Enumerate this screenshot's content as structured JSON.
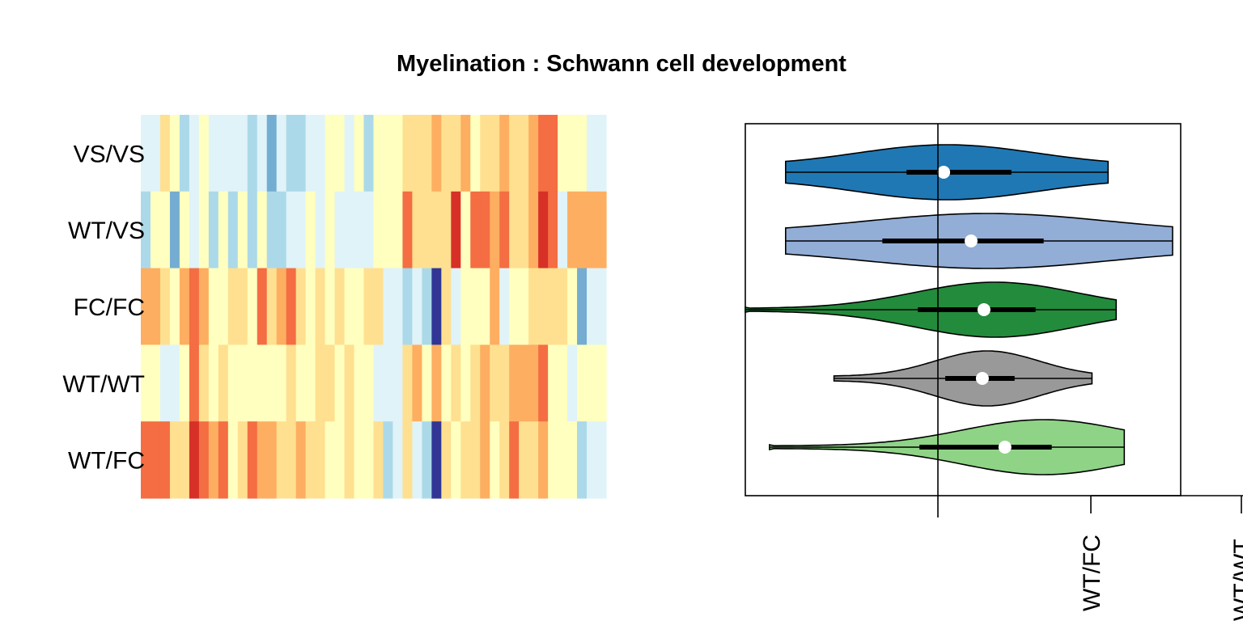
{
  "title": "Myelination : Schwann cell development",
  "chart_data": [
    {
      "type": "heatmap",
      "rows": [
        "VS/VS",
        "WT/VS",
        "FC/FC",
        "WT/WT",
        "WT/FC"
      ],
      "colors": [
        "#313695",
        "#4575b4",
        "#74add1",
        "#abd9e9",
        "#e0f3f8",
        "#ffffbf",
        "#fee090",
        "#fdae61",
        "#f46d43",
        "#d73027",
        "#a50026"
      ],
      "values": [
        [
          4,
          4,
          6,
          5,
          3,
          4,
          5,
          4,
          4,
          4,
          4,
          3,
          4,
          2,
          4,
          3,
          3,
          4,
          4,
          5,
          5,
          4,
          5,
          3,
          5,
          5,
          5,
          6,
          6,
          6,
          7,
          6,
          6,
          7,
          5,
          6,
          6,
          7,
          6,
          6,
          7,
          8,
          8,
          5,
          5,
          5,
          4,
          4
        ],
        [
          3,
          5,
          5,
          2,
          5,
          4,
          5,
          3,
          5,
          3,
          5,
          3,
          5,
          3,
          3,
          4,
          4,
          5,
          4,
          5,
          4,
          4,
          4,
          4,
          5,
          5,
          5,
          8,
          6,
          6,
          6,
          6,
          9,
          5,
          8,
          8,
          7,
          8,
          6,
          6,
          7,
          9,
          8,
          4,
          7,
          7,
          7,
          7
        ],
        [
          7,
          7,
          6,
          5,
          7,
          8,
          7,
          5,
          5,
          6,
          6,
          5,
          8,
          6,
          7,
          8,
          6,
          5,
          6,
          5,
          6,
          5,
          5,
          6,
          6,
          4,
          4,
          3,
          4,
          3,
          0,
          6,
          4,
          5,
          5,
          5,
          7,
          4,
          5,
          5,
          6,
          6,
          6,
          6,
          5,
          2,
          4,
          4
        ],
        [
          5,
          5,
          4,
          4,
          5,
          8,
          6,
          5,
          6,
          5,
          5,
          5,
          5,
          5,
          5,
          6,
          5,
          5,
          6,
          6,
          5,
          6,
          5,
          5,
          4,
          4,
          4,
          6,
          7,
          5,
          7,
          5,
          6,
          5,
          6,
          7,
          6,
          6,
          7,
          7,
          7,
          8,
          5,
          5,
          4,
          5,
          5,
          5
        ],
        [
          8,
          8,
          8,
          6,
          6,
          9,
          8,
          7,
          8,
          5,
          6,
          8,
          7,
          7,
          6,
          6,
          7,
          6,
          6,
          5,
          5,
          6,
          5,
          5,
          6,
          3,
          4,
          6,
          4,
          3,
          0,
          6,
          5,
          6,
          6,
          7,
          5,
          6,
          8,
          6,
          6,
          7,
          5,
          5,
          5,
          3,
          4,
          4
        ]
      ]
    },
    {
      "type": "violin",
      "series": [
        {
          "color": "#1f78b4",
          "whisker": [
            -0.95,
            1.05
          ],
          "iqr": [
            -0.2,
            0.45
          ],
          "median": 0.03
        },
        {
          "color": "#92aed6",
          "whisker": [
            -0.95,
            1.45
          ],
          "iqr": [
            -0.35,
            0.65
          ],
          "median": 0.2
        },
        {
          "color": "#238b3c",
          "whisker": [
            -1.2,
            1.1
          ],
          "iqr": [
            -0.13,
            0.6
          ],
          "median": 0.28
        },
        {
          "color": "#999999",
          "whisker": [
            -0.65,
            0.95
          ],
          "iqr": [
            0.04,
            0.47
          ],
          "median": 0.27
        },
        {
          "color": "#8fd386",
          "whisker": [
            -1.05,
            1.15
          ],
          "iqr": [
            -0.12,
            0.7
          ],
          "median": 0.41
        }
      ],
      "reference_x": 0,
      "xlim": [
        -1.2,
        1.5
      ],
      "tick_labels": [
        "WT/FC",
        "WT/WT"
      ]
    }
  ]
}
